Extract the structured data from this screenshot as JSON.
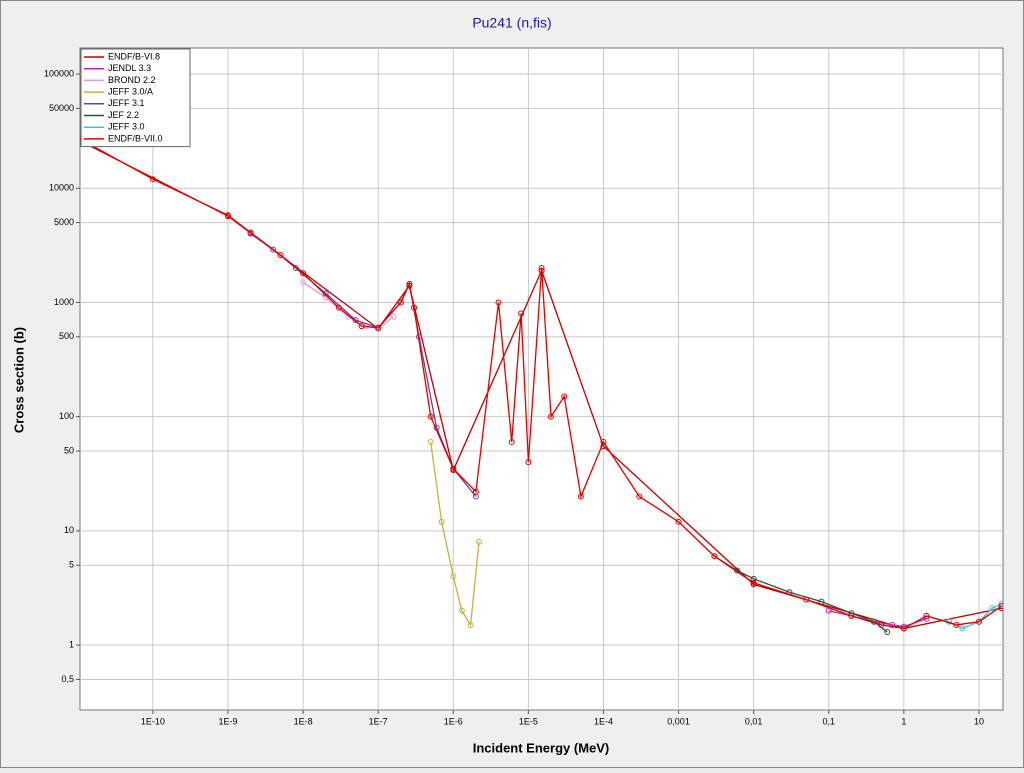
{
  "chart_data": {
    "type": "scatter",
    "title": "Pu241 (n,fis)",
    "x_label": "Incident Energy (MeV)",
    "y_label": "Cross section (b)",
    "log_x": true,
    "log_y": true,
    "grid": true,
    "legend_position": "top-left",
    "xlim": [
      1.07e-11,
      20.9
    ],
    "ylim": [
      0.27,
      169000
    ],
    "xticks": [
      {
        "value": 1e-10,
        "label": "1E-10"
      },
      {
        "value": 1e-09,
        "label": "1E-9"
      },
      {
        "value": 1e-08,
        "label": "1E-8"
      },
      {
        "value": 1e-07,
        "label": "1E-7"
      },
      {
        "value": 1e-06,
        "label": "1E-6"
      },
      {
        "value": 1e-05,
        "label": "1E-5"
      },
      {
        "value": 0.0001,
        "label": "1E-4"
      },
      {
        "value": 0.001,
        "label": "0,001"
      },
      {
        "value": 0.01,
        "label": "0,01"
      },
      {
        "value": 0.1,
        "label": "0,1"
      },
      1,
      10
    ],
    "yticks": [
      {
        "value": 0.5,
        "label": "0,5"
      },
      1,
      5,
      10,
      50,
      100,
      500,
      1000,
      5000,
      10000,
      50000,
      100000
    ],
    "series": [
      {
        "name": "ENDF/B-VI.8",
        "color": "#c00000",
        "x": [
          1.07e-11,
          1e-09,
          1e-07,
          2.6e-07,
          1e-06,
          1.5e-05,
          0.0001,
          0.01,
          1,
          20
        ],
        "values": [
          26000,
          5700,
          590,
          1400,
          34,
          1900,
          55,
          3.4,
          1.4,
          2.1
        ]
      },
      {
        "name": "JENDL 3.3",
        "color": "#c020c0",
        "x": [
          0.1,
          0.2,
          0.4,
          0.7,
          1,
          2
        ],
        "values": [
          2.0,
          1.8,
          1.6,
          1.5,
          1.45,
          1.7
        ]
      },
      {
        "name": "BROND 2.2",
        "color": "#d8a0d8",
        "x": [
          1e-08,
          2e-08,
          4e-08,
          7e-08,
          1e-07,
          1.6e-07
        ],
        "values": [
          1500,
          1100,
          750,
          620,
          590,
          750
        ]
      },
      {
        "name": "JEFF 3.0/A",
        "color": "#c8b040",
        "x": [
          5e-07,
          7e-07,
          1e-06,
          1.3e-06,
          1.7e-06,
          2.2e-06
        ],
        "values": [
          60,
          12,
          4,
          2,
          1.5,
          8
        ]
      },
      {
        "name": "JEFF 3.1",
        "color": "#6a3fa0",
        "x": [
          2e-09,
          4e-09,
          8e-09,
          2e-08,
          5e-08,
          1e-07,
          2e-07,
          2.6e-07,
          3.5e-07,
          6e-07,
          1e-06,
          2e-06
        ],
        "values": [
          4000,
          2900,
          2000,
          1200,
          700,
          600,
          1000,
          1450,
          500,
          80,
          35,
          20
        ]
      },
      {
        "name": "JEF 2.2",
        "color": "#2f4f3f",
        "x": [
          0.003,
          0.006,
          0.01,
          0.03,
          0.08,
          0.2,
          0.4,
          0.6
        ],
        "values": [
          6,
          4.5,
          3.8,
          2.9,
          2.4,
          1.9,
          1.6,
          1.3
        ]
      },
      {
        "name": "JEFF 3.0",
        "color": "#40c0d0",
        "x": [
          0.2,
          0.5,
          1,
          2,
          4,
          6,
          10,
          15,
          20
        ],
        "values": [
          1.8,
          1.5,
          1.4,
          1.8,
          1.6,
          1.4,
          1.6,
          2.1,
          2.3
        ]
      },
      {
        "name": "ENDF/B-VII.0",
        "color": "#e00000",
        "x": [
          1.07e-11,
          1e-10,
          1e-09,
          2e-09,
          5e-09,
          1e-08,
          3e-08,
          6e-08,
          1e-07,
          2e-07,
          2.6e-07,
          3e-07,
          5e-07,
          1e-06,
          2e-06,
          4e-06,
          6e-06,
          8e-06,
          1e-05,
          1.5e-05,
          2e-05,
          3e-05,
          5e-05,
          0.0001,
          0.0003,
          0.001,
          0.003,
          0.01,
          0.05,
          0.2,
          0.5,
          1,
          2,
          5,
          10,
          20
        ],
        "values": [
          27000,
          12000,
          5800,
          4100,
          2600,
          1800,
          900,
          620,
          600,
          1000,
          1450,
          900,
          100,
          35,
          22,
          1000,
          60,
          800,
          40,
          2000,
          100,
          150,
          20,
          60,
          20,
          12,
          6,
          3.5,
          2.5,
          1.8,
          1.5,
          1.4,
          1.8,
          1.5,
          1.6,
          2.2
        ]
      }
    ]
  }
}
